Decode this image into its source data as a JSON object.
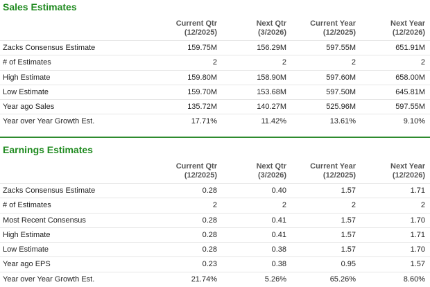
{
  "sections": [
    {
      "title": "Sales Estimates",
      "columns": [
        {
          "label": "Current Qtr",
          "period": "(12/2025)"
        },
        {
          "label": "Next Qtr",
          "period": "(3/2026)"
        },
        {
          "label": "Current Year",
          "period": "(12/2025)"
        },
        {
          "label": "Next Year",
          "period": "(12/2026)"
        }
      ],
      "rows": [
        {
          "label": "Zacks Consensus Estimate",
          "values": [
            "159.75M",
            "156.29M",
            "597.55M",
            "651.91M"
          ]
        },
        {
          "label": "# of Estimates",
          "values": [
            "2",
            "2",
            "2",
            "2"
          ]
        },
        {
          "label": "High Estimate",
          "values": [
            "159.80M",
            "158.90M",
            "597.60M",
            "658.00M"
          ]
        },
        {
          "label": "Low Estimate",
          "values": [
            "159.70M",
            "153.68M",
            "597.50M",
            "645.81M"
          ]
        },
        {
          "label": "Year ago Sales",
          "values": [
            "135.72M",
            "140.27M",
            "525.96M",
            "597.55M"
          ]
        },
        {
          "label": "Year over Year Growth Est.",
          "values": [
            "17.71%",
            "11.42%",
            "13.61%",
            "9.10%"
          ]
        }
      ]
    },
    {
      "title": "Earnings Estimates",
      "columns": [
        {
          "label": "Current Qtr",
          "period": "(12/2025)"
        },
        {
          "label": "Next Qtr",
          "period": "(3/2026)"
        },
        {
          "label": "Current Year",
          "period": "(12/2025)"
        },
        {
          "label": "Next Year",
          "period": "(12/2026)"
        }
      ],
      "rows": [
        {
          "label": "Zacks Consensus Estimate",
          "values": [
            "0.28",
            "0.40",
            "1.57",
            "1.71"
          ]
        },
        {
          "label": "# of Estimates",
          "values": [
            "2",
            "2",
            "2",
            "2"
          ]
        },
        {
          "label": "Most Recent Consensus",
          "values": [
            "0.28",
            "0.41",
            "1.57",
            "1.70"
          ]
        },
        {
          "label": "High Estimate",
          "values": [
            "0.28",
            "0.41",
            "1.57",
            "1.71"
          ]
        },
        {
          "label": "Low Estimate",
          "values": [
            "0.28",
            "0.38",
            "1.57",
            "1.70"
          ]
        },
        {
          "label": "Year ago EPS",
          "values": [
            "0.23",
            "0.38",
            "0.95",
            "1.57"
          ]
        },
        {
          "label": "Year over Year Growth Est.",
          "values": [
            "21.74%",
            "5.26%",
            "65.26%",
            "8.60%"
          ]
        }
      ]
    }
  ]
}
